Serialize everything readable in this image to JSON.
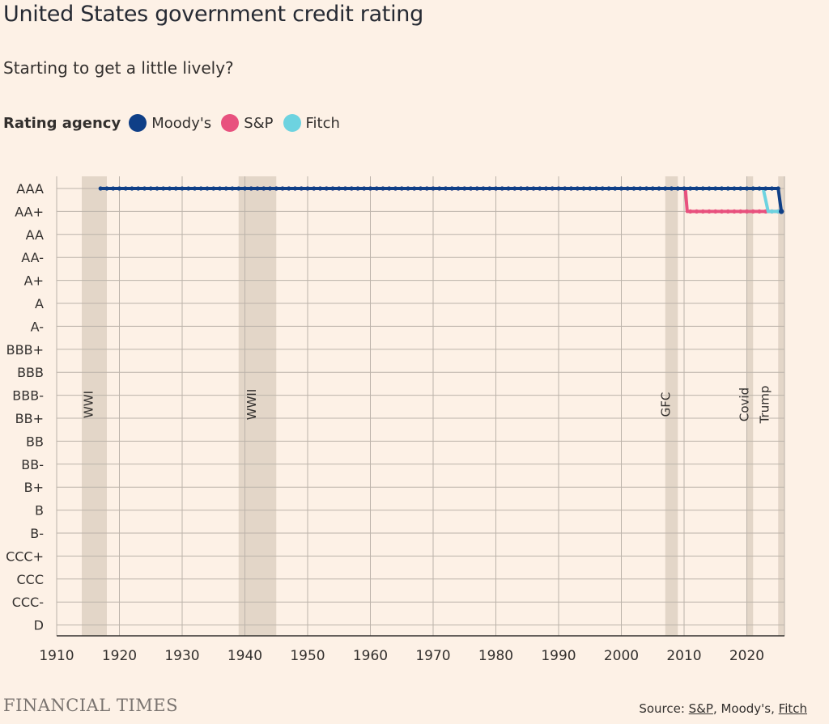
{
  "title": "United States government credit rating",
  "subtitle": "Starting to get a little lively?",
  "legend": {
    "title": "Rating agency",
    "items": [
      {
        "label": "Moody's",
        "color": "#0f3f87"
      },
      {
        "label": "S&P",
        "color": "#e8517e"
      },
      {
        "label": "Fitch",
        "color": "#6dd3e0"
      }
    ]
  },
  "footer": {
    "logo": "FINANCIAL TIMES",
    "source_prefix": "Source: ",
    "source_sp": "S&P",
    "source_sep1": ", Moody's, ",
    "source_fitch": "Fitch"
  },
  "chart_data": {
    "type": "line",
    "xlim": [
      1910,
      2026
    ],
    "xticks": [
      1910,
      1920,
      1930,
      1940,
      1950,
      1960,
      1970,
      1980,
      1990,
      2000,
      2010,
      2020
    ],
    "ratings": [
      "AAA",
      "AA+",
      "AA",
      "AA-",
      "A+",
      "A",
      "A-",
      "BBB+",
      "BBB",
      "BBB-",
      "BB+",
      "BB",
      "BB-",
      "B+",
      "B",
      "B-",
      "CCC+",
      "CCC",
      "CCC-",
      "D"
    ],
    "grid": true,
    "shaded_periods": [
      {
        "label": "WWI",
        "start": 1914,
        "end": 1918
      },
      {
        "label": "WWII",
        "start": 1939,
        "end": 1945
      },
      {
        "label": "GFC",
        "start": 2007,
        "end": 2009
      },
      {
        "label": "Covid",
        "start": 2020,
        "end": 2021
      },
      {
        "label": "Trump",
        "start": 2025,
        "end": 2026
      }
    ],
    "series": [
      {
        "name": "Moody's",
        "color": "#0f3f87",
        "points": [
          [
            1917,
            "AAA"
          ],
          [
            2025,
            "AAA"
          ],
          [
            2025.5,
            "AA+"
          ]
        ]
      },
      {
        "name": "S&P",
        "color": "#e8517e",
        "points": [
          [
            1941,
            "AAA"
          ],
          [
            1993.5,
            "AAA"
          ],
          [
            2010.2,
            "AAA"
          ],
          [
            2010.5,
            "AA+"
          ],
          [
            2025.5,
            "AA+"
          ]
        ]
      },
      {
        "name": "Fitch",
        "color": "#6dd3e0",
        "points": [
          [
            1993.5,
            "AAA"
          ],
          [
            2022.6,
            "AAA"
          ],
          [
            2023.4,
            "AA+"
          ],
          [
            2025.5,
            "AA+"
          ]
        ]
      }
    ]
  }
}
